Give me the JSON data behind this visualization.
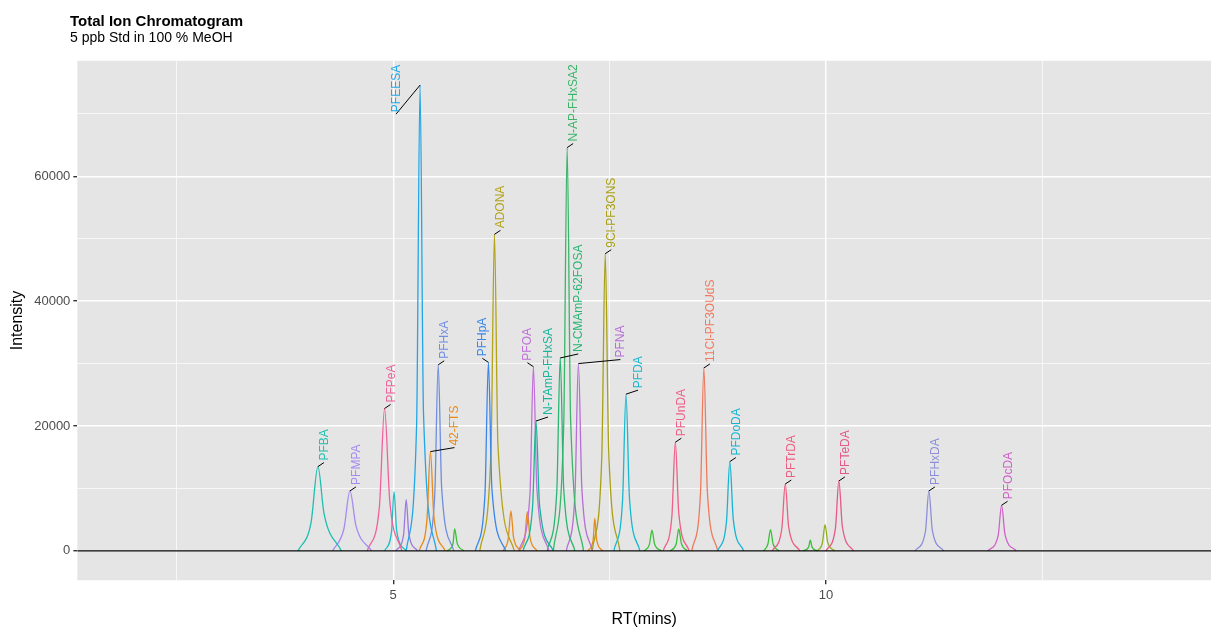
{
  "chart_data": {
    "type": "line",
    "title": "Total Ion Chromatogram",
    "subtitle": "5 ppb Std in 100 % MeOH",
    "xlabel": "RT(mins)",
    "ylabel": "Intensity",
    "xlim": [
      1.35,
      14.45
    ],
    "xticks": [
      {
        "value": 2.5,
        "label": null
      },
      5,
      {
        "value": 7.5,
        "label": null
      },
      10,
      {
        "value": 12.5,
        "label": null
      }
    ],
    "ylim": [
      -4700,
      78500
    ],
    "yticks": [
      0,
      {
        "value": 10000,
        "label": null
      },
      20000,
      {
        "value": 30000,
        "label": null
      },
      40000,
      {
        "value": 50000,
        "label": null
      },
      60000,
      {
        "value": 70000,
        "label": null
      }
    ],
    "grid": true,
    "legend": false,
    "marker": "none",
    "line_style": "solid",
    "ref_lines": [
      {
        "axis": "y",
        "value": 0,
        "color": "#000000"
      }
    ],
    "series": [
      {
        "name": "PFBA",
        "color": "#1fbfb0",
        "x": [
          3.9,
          4.05,
          4.13,
          4.2,
          4.4
        ],
        "values": [
          0,
          4500,
          13500,
          6000,
          0
        ]
      },
      {
        "name": "PFMPA",
        "color": "#a58af0",
        "x": [
          4.3,
          4.43,
          4.5,
          4.57,
          4.75
        ],
        "values": [
          0,
          3500,
          9600,
          4000,
          0
        ]
      },
      {
        "name": "PFPeA",
        "color": "#f0609a",
        "x": [
          4.7,
          4.84,
          4.9,
          4.96,
          5.1
        ],
        "values": [
          0,
          7000,
          22800,
          8000,
          0
        ]
      },
      {
        "name": "42-FTS",
        "color": "#e88a1a",
        "x": [
          5.3,
          5.39,
          5.43,
          5.47,
          5.6
        ],
        "values": [
          0,
          5000,
          15900,
          5500,
          0
        ]
      },
      {
        "name": "PFEESA",
        "color": "#22a6e6",
        "x": [
          5.15,
          5.27,
          5.31,
          5.35,
          5.5
        ],
        "values": [
          0,
          20000,
          74600,
          22000,
          0
        ]
      },
      {
        "name": "PFHxA",
        "color": "#6f8ee0",
        "x": [
          5.38,
          5.48,
          5.52,
          5.56,
          5.7
        ],
        "values": [
          0,
          9000,
          29800,
          10000,
          0
        ]
      },
      {
        "name": "PFHpA",
        "color": "#3a86e8",
        "x": [
          5.95,
          6.06,
          6.1,
          6.14,
          6.3
        ],
        "values": [
          0,
          9000,
          30200,
          10000,
          0
        ]
      },
      {
        "name": "ADONA",
        "color": "#b3a31a",
        "x": [
          6.0,
          6.13,
          6.17,
          6.21,
          6.4
        ],
        "values": [
          0,
          16000,
          50700,
          17000,
          0
        ]
      },
      {
        "name": "N-TAmP-FHxSA",
        "color": "#19b59a",
        "x": [
          6.5,
          6.61,
          6.65,
          6.69,
          6.85
        ],
        "values": [
          0,
          7000,
          20800,
          7500,
          0
        ]
      },
      {
        "name": "PFOA",
        "color": "#c070d8",
        "x": [
          6.45,
          6.58,
          6.62,
          6.66,
          6.8
        ],
        "values": [
          0,
          9000,
          29500,
          10000,
          0
        ]
      },
      {
        "name": "N-CMAmP-62FOSA",
        "color": "#2bb573",
        "x": [
          6.78,
          6.89,
          6.93,
          6.97,
          7.1
        ],
        "values": [
          0,
          9500,
          30900,
          10000,
          0
        ]
      },
      {
        "name": "N-AP-FHxSA2",
        "color": "#3cb56a",
        "x": [
          6.85,
          6.97,
          7.01,
          7.05,
          7.2
        ],
        "values": [
          0,
          20000,
          64600,
          21000,
          0
        ]
      },
      {
        "name": "PFNA",
        "color": "#b56fd6",
        "x": [
          7.0,
          7.1,
          7.14,
          7.18,
          7.3
        ],
        "values": [
          0,
          9000,
          30000,
          10000,
          0
        ]
      },
      {
        "name": "9Cl-PF3ONS",
        "color": "#a9a016",
        "x": [
          7.3,
          7.41,
          7.45,
          7.49,
          7.62
        ],
        "values": [
          0,
          15000,
          47600,
          16000,
          0
        ]
      },
      {
        "name": "PFDA",
        "color": "#19b8d0",
        "x": [
          7.55,
          7.65,
          7.69,
          7.73,
          7.85
        ],
        "values": [
          0,
          8000,
          25100,
          8500,
          0
        ]
      },
      {
        "name": "PFUnDA",
        "color": "#ef5f86",
        "x": [
          8.12,
          8.22,
          8.26,
          8.3,
          8.42
        ],
        "values": [
          0,
          5500,
          17400,
          6000,
          0
        ]
      },
      {
        "name": "11Cl-PF3OUdS",
        "color": "#f07a5e",
        "x": [
          8.45,
          8.55,
          8.59,
          8.63,
          8.75
        ],
        "values": [
          0,
          9000,
          29300,
          9500,
          0
        ]
      },
      {
        "name": "PFDoDA",
        "color": "#16b4d4",
        "x": [
          8.75,
          8.85,
          8.89,
          8.93,
          9.05
        ],
        "values": [
          0,
          4500,
          14300,
          5000,
          0
        ]
      },
      {
        "name": "PFTrDA",
        "color": "#ec5f80",
        "x": [
          9.38,
          9.49,
          9.53,
          9.57,
          9.7
        ],
        "values": [
          0,
          3500,
          10700,
          3800,
          0
        ]
      },
      {
        "name": "PFTeDA",
        "color": "#e6578a",
        "x": [
          10.0,
          10.11,
          10.15,
          10.19,
          10.32
        ],
        "values": [
          0,
          3600,
          11200,
          3900,
          0
        ]
      },
      {
        "name": "PFHxDA",
        "color": "#8c8fd8",
        "x": [
          11.03,
          11.15,
          11.19,
          11.23,
          11.36
        ],
        "values": [
          0,
          3100,
          9600,
          3300,
          0
        ]
      },
      {
        "name": "PFOcDA",
        "color": "#cf62c8",
        "x": [
          11.87,
          11.99,
          12.03,
          12.07,
          12.2
        ],
        "values": [
          0,
          2400,
          7300,
          2600,
          0
        ]
      },
      {
        "color": "#1fbfc8",
        "x": [
          4.9,
          4.98,
          5.01,
          5.04,
          5.15
        ],
        "values": [
          0,
          3000,
          9500,
          3200,
          0
        ]
      },
      {
        "color": "#9a7ae0",
        "x": [
          5.03,
          5.12,
          5.15,
          5.18,
          5.28
        ],
        "values": [
          0,
          2600,
          8200,
          2800,
          0
        ]
      },
      {
        "color": "#3cbf3a",
        "x": [
          5.62,
          5.69,
          5.71,
          5.74,
          5.82
        ],
        "values": [
          0,
          1100,
          3500,
          1200,
          0
        ]
      },
      {
        "color": "#e88a1a",
        "x": [
          6.27,
          6.33,
          6.36,
          6.39,
          6.47
        ],
        "values": [
          0,
          2000,
          6400,
          2200,
          0
        ]
      },
      {
        "color": "#e88a1a",
        "x": [
          6.45,
          6.52,
          6.55,
          6.58,
          6.66
        ],
        "values": [
          0,
          2000,
          6300,
          2200,
          0
        ]
      },
      {
        "color": "#e88a1a",
        "x": [
          7.25,
          7.31,
          7.33,
          7.35,
          7.42
        ],
        "values": [
          0,
          1700,
          5200,
          1800,
          0
        ]
      },
      {
        "color": "#3cbf3a",
        "x": [
          7.9,
          7.96,
          7.99,
          8.02,
          8.1
        ],
        "values": [
          0,
          1000,
          3300,
          1100,
          0
        ]
      },
      {
        "color": "#3cbf3a",
        "x": [
          8.2,
          8.27,
          8.3,
          8.33,
          8.4
        ],
        "values": [
          0,
          1100,
          3500,
          1200,
          0
        ]
      },
      {
        "color": "#3cbf3a",
        "x": [
          9.28,
          9.33,
          9.36,
          9.39,
          9.46
        ],
        "values": [
          0,
          1100,
          3400,
          1100,
          0
        ]
      },
      {
        "color": "#3cbf3a",
        "x": [
          9.74,
          9.8,
          9.82,
          9.84,
          9.9
        ],
        "values": [
          0,
          600,
          1700,
          600,
          0
        ]
      },
      {
        "color": "#8fb020",
        "x": [
          9.9,
          9.96,
          9.99,
          10.02,
          10.1
        ],
        "values": [
          0,
          1300,
          4200,
          1400,
          0
        ]
      }
    ]
  }
}
